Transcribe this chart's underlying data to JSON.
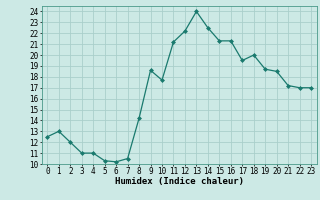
{
  "x": [
    0,
    1,
    2,
    3,
    4,
    5,
    6,
    7,
    8,
    9,
    10,
    11,
    12,
    13,
    14,
    15,
    16,
    17,
    18,
    19,
    20,
    21,
    22,
    23
  ],
  "y": [
    12.5,
    13.0,
    12.0,
    11.0,
    11.0,
    10.3,
    10.2,
    10.5,
    14.2,
    18.6,
    17.7,
    21.2,
    22.2,
    24.0,
    22.5,
    21.3,
    21.3,
    19.5,
    20.0,
    18.7,
    18.5,
    17.2,
    17.0,
    17.0
  ],
  "line_color": "#1a7a6e",
  "marker": "D",
  "marker_size": 2,
  "bg_color": "#cce9e5",
  "grid_color": "#aacfcb",
  "xlabel": "Humidex (Indice chaleur)",
  "ylim": [
    10,
    24.5
  ],
  "xlim": [
    -0.5,
    23.5
  ],
  "yticks": [
    10,
    11,
    12,
    13,
    14,
    15,
    16,
    17,
    18,
    19,
    20,
    21,
    22,
    23,
    24
  ],
  "xticks": [
    0,
    1,
    2,
    3,
    4,
    5,
    6,
    7,
    8,
    9,
    10,
    11,
    12,
    13,
    14,
    15,
    16,
    17,
    18,
    19,
    20,
    21,
    22,
    23
  ],
  "tick_fontsize": 5.5,
  "xlabel_fontsize": 6.5,
  "spine_color": "#4a9a8a",
  "linewidth": 0.9
}
